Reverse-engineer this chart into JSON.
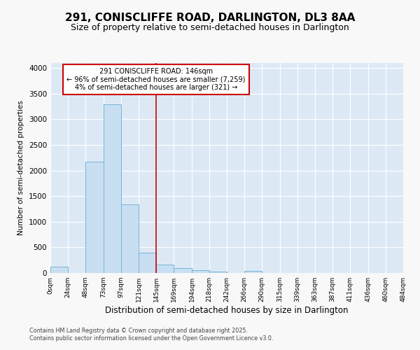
{
  "title1": "291, CONISCLIFFE ROAD, DARLINGTON, DL3 8AA",
  "title2": "Size of property relative to semi-detached houses in Darlington",
  "xlabel": "Distribution of semi-detached houses by size in Darlington",
  "ylabel": "Number of semi-detached properties",
  "footnote1": "Contains HM Land Registry data © Crown copyright and database right 2025.",
  "footnote2": "Contains public sector information licensed under the Open Government Licence v3.0.",
  "annotation_line1": "291 CONISCLIFFE ROAD: 146sqm",
  "annotation_line2": "← 96% of semi-detached houses are smaller (7,259)",
  "annotation_line3": "4% of semi-detached houses are larger (321) →",
  "bar_edges": [
    0,
    24,
    48,
    73,
    97,
    121,
    145,
    169,
    194,
    218,
    242,
    266,
    290,
    315,
    339,
    363,
    387,
    411,
    436,
    460,
    484
  ],
  "bar_heights": [
    120,
    5,
    2170,
    3290,
    1340,
    390,
    170,
    100,
    50,
    30,
    5,
    35,
    5,
    0,
    0,
    0,
    0,
    0,
    0,
    0
  ],
  "bar_color": "#c8dff2",
  "bar_edge_color": "#7ab3d8",
  "vline_x": 145,
  "vline_color": "#cc0000",
  "ylim": [
    0,
    4100
  ],
  "yticks": [
    0,
    500,
    1000,
    1500,
    2000,
    2500,
    3000,
    3500,
    4000
  ],
  "plot_bg_color": "#dce9f5",
  "fig_bg_color": "#f8f8f8",
  "grid_color": "#ffffff",
  "annotation_box_color": "#ffffff",
  "annotation_box_edge": "#cc0000",
  "title1_fontsize": 11,
  "title2_fontsize": 9
}
